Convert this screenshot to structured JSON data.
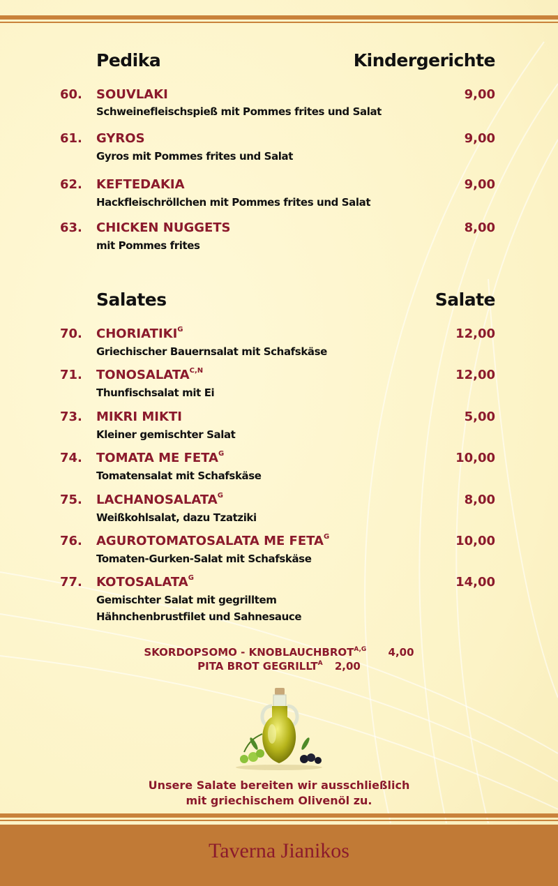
{
  "sections": [
    {
      "title_left": "Pedika",
      "title_right": "Kindergerichte",
      "items": [
        {
          "number": "60.",
          "name": "SOUVLAKI",
          "allergens": "",
          "description": "Schweinefleischspieß mit Pommes frites und Salat",
          "price": "9,00"
        },
        {
          "number": "61.",
          "name": "GYROS",
          "allergens": "",
          "description": "Gyros mit Pommes frites und Salat",
          "price": "9,00"
        },
        {
          "number": "62.",
          "name": "KEFTEDAKIA",
          "allergens": "",
          "description": "Hackfleischröllchen mit Pommes frites und Salat",
          "price": "9,00"
        },
        {
          "number": "63.",
          "name": "CHICKEN NUGGETS",
          "allergens": "",
          "description": "mit Pommes frites",
          "price": "8,00"
        }
      ]
    },
    {
      "title_left": "Salates",
      "title_right": "Salate",
      "items": [
        {
          "number": "70.",
          "name": "CHORIATIKI",
          "allergens": "G",
          "description": "Griechischer Bauernsalat mit Schafskäse",
          "price": "12,00"
        },
        {
          "number": "71.",
          "name": "TONOSALATA",
          "allergens": "C,N",
          "description": "Thunfischsalat mit Ei",
          "price": "12,00"
        },
        {
          "number": "73.",
          "name": "MIKRI MIKTI",
          "allergens": "",
          "description": "Kleiner gemischter Salat",
          "price": "5,00"
        },
        {
          "number": "74.",
          "name": "TOMATA ME FETA",
          "allergens": "G",
          "description": "Tomatensalat mit Schafskäse",
          "price": "10,00"
        },
        {
          "number": "75.",
          "name": "LACHANOSALATA",
          "allergens": "G",
          "description": "Weißkohlsalat, dazu Tzatziki",
          "price": "8,00"
        },
        {
          "number": "76.",
          "name": "AGUROTOMATOSALATA ME FETA",
          "allergens": "G",
          "description": "Tomaten-Gurken-Salat mit Schafskäse",
          "price": "10,00"
        },
        {
          "number": "77.",
          "name": "KOTOSALATA",
          "allergens": "G",
          "description": "Gemischter Salat mit gegrilltem",
          "description2": "Hähnchenbrustfilet und Sahnesauce",
          "price": "14,00"
        }
      ]
    }
  ],
  "extras": [
    {
      "name": "SKORDOPSOMO - KNOBLAUCHBROT",
      "allergens": "A,G",
      "price": "4,00"
    },
    {
      "name": "PITA BROT GEGRILLT",
      "allergens": "A",
      "price": "2,00"
    }
  ],
  "image": {
    "icon": "olive-oil-bottle-with-olives"
  },
  "note": {
    "line1": "Unsere Salate bereiten wir ausschließlich",
    "line2": "mit griechischem Olivenöl zu."
  },
  "footer": {
    "brand": "Taverna Jianikos"
  },
  "colors": {
    "background": "#fcf3c6",
    "accent": "#8b1a2c",
    "stripe": "#c9823b",
    "footer": "#c17a36"
  }
}
